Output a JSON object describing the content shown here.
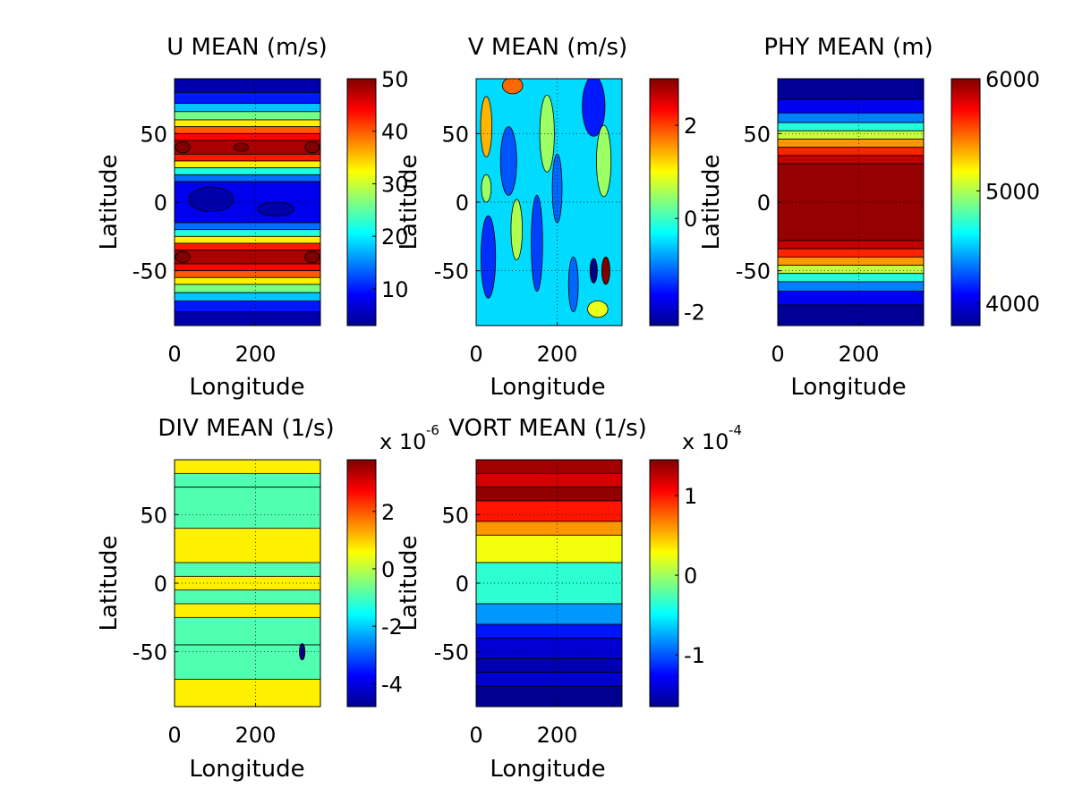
{
  "chart_data": [
    {
      "type": "heatmap",
      "title": "U MEAN (m/s)",
      "xlabel": "Longitude",
      "ylabel": "Latitude",
      "xlim": [
        0,
        360
      ],
      "ylim": [
        -90,
        90
      ],
      "xticks": [
        0,
        200
      ],
      "yticks": [
        50,
        0,
        -50
      ],
      "colorbar": {
        "range": [
          3,
          50
        ],
        "ticks": [
          50,
          40,
          30,
          20,
          10
        ],
        "multiplier": ""
      },
      "grid": true,
      "colormap": "jet",
      "field": "zonal wind",
      "bands": [
        {
          "lat": [
            80,
            90
          ],
          "value": 5
        },
        {
          "lat": [
            72,
            80
          ],
          "value": 10
        },
        {
          "lat": [
            66,
            72
          ],
          "value": 18
        },
        {
          "lat": [
            60,
            66
          ],
          "value": 26
        },
        {
          "lat": [
            55,
            60
          ],
          "value": 33
        },
        {
          "lat": [
            50,
            55
          ],
          "value": 40
        },
        {
          "lat": [
            45,
            50
          ],
          "value": 44
        },
        {
          "lat": [
            35,
            45
          ],
          "value": 48
        },
        {
          "lat": [
            30,
            35
          ],
          "value": 43
        },
        {
          "lat": [
            25,
            30
          ],
          "value": 33
        },
        {
          "lat": [
            20,
            25
          ],
          "value": 22
        },
        {
          "lat": [
            15,
            20
          ],
          "value": 14
        },
        {
          "lat": [
            -15,
            15
          ],
          "value": 8
        },
        {
          "lat": [
            -20,
            -15
          ],
          "value": 14
        },
        {
          "lat": [
            -25,
            -20
          ],
          "value": 22
        },
        {
          "lat": [
            -30,
            -25
          ],
          "value": 33
        },
        {
          "lat": [
            -35,
            -30
          ],
          "value": 43
        },
        {
          "lat": [
            -45,
            -35
          ],
          "value": 48
        },
        {
          "lat": [
            -50,
            -45
          ],
          "value": 44
        },
        {
          "lat": [
            -55,
            -50
          ],
          "value": 40
        },
        {
          "lat": [
            -60,
            -55
          ],
          "value": 33
        },
        {
          "lat": [
            -66,
            -60
          ],
          "value": 26
        },
        {
          "lat": [
            -72,
            -66
          ],
          "value": 18
        },
        {
          "lat": [
            -80,
            -72
          ],
          "value": 10
        },
        {
          "lat": [
            -90,
            -80
          ],
          "value": 5
        }
      ],
      "blobs": [
        {
          "lon": 20,
          "lat": 40,
          "rlon": 18,
          "rlat": 4,
          "value": 51
        },
        {
          "lon": 165,
          "lat": 40,
          "rlon": 18,
          "rlat": 3,
          "value": 51
        },
        {
          "lon": 340,
          "lat": 40,
          "rlon": 18,
          "rlat": 4,
          "value": 51
        },
        {
          "lon": 20,
          "lat": -40,
          "rlon": 18,
          "rlat": 4,
          "value": 51
        },
        {
          "lon": 340,
          "lat": -40,
          "rlon": 18,
          "rlat": 4,
          "value": 51
        },
        {
          "lon": 90,
          "lat": 2,
          "rlon": 55,
          "rlat": 9,
          "value": 5
        },
        {
          "lon": 250,
          "lat": -5,
          "rlon": 45,
          "rlat": 5,
          "value": 5
        }
      ]
    },
    {
      "type": "heatmap",
      "title": "V MEAN (m/s)",
      "xlabel": "Longitude",
      "ylabel": "Latitude",
      "xlim": [
        0,
        360
      ],
      "ylim": [
        -90,
        90
      ],
      "xticks": [
        0,
        200
      ],
      "yticks": [
        50,
        0,
        -50
      ],
      "colorbar": {
        "range": [
          -2.3,
          3
        ],
        "ticks": [
          2,
          0,
          -2
        ],
        "multiplier": ""
      },
      "grid": true,
      "colormap": "jet",
      "field": "meridional wind",
      "background": -0.5,
      "blobs": [
        {
          "lon": 25,
          "lat": 55,
          "rlon": 14,
          "rlat": 22,
          "value": 1.4
        },
        {
          "lon": 25,
          "lat": 10,
          "rlon": 12,
          "rlat": 10,
          "value": 0.5
        },
        {
          "lon": 30,
          "lat": -40,
          "rlon": 18,
          "rlat": 30,
          "value": -1.4
        },
        {
          "lon": 80,
          "lat": 30,
          "rlon": 20,
          "rlat": 25,
          "value": -1.2
        },
        {
          "lon": 100,
          "lat": -20,
          "rlon": 14,
          "rlat": 22,
          "value": 0.6
        },
        {
          "lon": 90,
          "lat": 85,
          "rlon": 25,
          "rlat": 6,
          "value": 1.8
        },
        {
          "lon": 175,
          "lat": 50,
          "rlon": 18,
          "rlat": 28,
          "value": 0.5
        },
        {
          "lon": 150,
          "lat": -30,
          "rlon": 14,
          "rlat": 35,
          "value": -1.3
        },
        {
          "lon": 200,
          "lat": 10,
          "rlon": 12,
          "rlat": 25,
          "value": -1.1
        },
        {
          "lon": 240,
          "lat": -60,
          "rlon": 12,
          "rlat": 20,
          "value": -1.1
        },
        {
          "lon": 290,
          "lat": 70,
          "rlon": 28,
          "rlat": 22,
          "value": -1.5
        },
        {
          "lon": 315,
          "lat": 30,
          "rlon": 18,
          "rlat": 26,
          "value": 0.5
        },
        {
          "lon": 290,
          "lat": -50,
          "rlon": 9,
          "rlat": 9,
          "value": -2.3
        },
        {
          "lon": 320,
          "lat": -50,
          "rlon": 10,
          "rlat": 10,
          "value": 3
        },
        {
          "lon": 300,
          "lat": -78,
          "rlon": 25,
          "rlat": 6,
          "value": 0.9
        }
      ]
    },
    {
      "type": "heatmap",
      "title": "PHY MEAN (m)",
      "xlabel": "Longitude",
      "ylabel": "Latitude",
      "xlim": [
        0,
        360
      ],
      "ylim": [
        -90,
        90
      ],
      "xticks": [
        0,
        200
      ],
      "yticks": [
        50,
        0,
        -50
      ],
      "colorbar": {
        "range": [
          3800,
          6000
        ],
        "ticks": [
          6000,
          5000,
          4000
        ],
        "multiplier": ""
      },
      "grid": true,
      "colormap": "jet",
      "field": "geopotential height",
      "bands": [
        {
          "lat": [
            75,
            90
          ],
          "value": 3850
        },
        {
          "lat": [
            65,
            75
          ],
          "value": 4050
        },
        {
          "lat": [
            58,
            65
          ],
          "value": 4350
        },
        {
          "lat": [
            52,
            58
          ],
          "value": 4700
        },
        {
          "lat": [
            46,
            52
          ],
          "value": 5050
        },
        {
          "lat": [
            40,
            46
          ],
          "value": 5400
        },
        {
          "lat": [
            34,
            40
          ],
          "value": 5650
        },
        {
          "lat": [
            28,
            34
          ],
          "value": 5850
        },
        {
          "lat": [
            -28,
            28
          ],
          "value": 5950
        },
        {
          "lat": [
            -34,
            -28
          ],
          "value": 5850
        },
        {
          "lat": [
            -40,
            -34
          ],
          "value": 5650
        },
        {
          "lat": [
            -46,
            -40
          ],
          "value": 5400
        },
        {
          "lat": [
            -52,
            -46
          ],
          "value": 5050
        },
        {
          "lat": [
            -58,
            -52
          ],
          "value": 4700
        },
        {
          "lat": [
            -65,
            -58
          ],
          "value": 4350
        },
        {
          "lat": [
            -75,
            -65
          ],
          "value": 4050
        },
        {
          "lat": [
            -90,
            -75
          ],
          "value": 3850
        }
      ]
    },
    {
      "type": "heatmap",
      "title": "DIV MEAN (1/s)",
      "xlabel": "Longitude",
      "ylabel": "Latitude",
      "xlim": [
        0,
        360
      ],
      "ylim": [
        -90,
        90
      ],
      "xticks": [
        0,
        200
      ],
      "yticks": [
        50,
        0,
        -50
      ],
      "colorbar": {
        "range": [
          -4.8,
          3.8
        ],
        "ticks": [
          2,
          0,
          -2,
          -4
        ],
        "multiplier": "x 10",
        "exponent": "-6"
      },
      "grid": true,
      "colormap": "jet",
      "field": "divergence",
      "background": 0.7,
      "bands": [
        {
          "lat": [
            70,
            80
          ],
          "value": -0.9
        },
        {
          "lat": [
            40,
            70
          ],
          "value": -0.9
        },
        {
          "lat": [
            5,
            15
          ],
          "value": -0.9
        },
        {
          "lat": [
            -15,
            -5
          ],
          "value": -0.9
        },
        {
          "lat": [
            -45,
            -25
          ],
          "value": -0.9
        },
        {
          "lat": [
            -70,
            -45
          ],
          "value": -0.9
        }
      ],
      "blobs": [
        {
          "lon": 315,
          "lat": -50,
          "rlon": 7,
          "rlat": 6,
          "value": -4.8
        }
      ]
    },
    {
      "type": "heatmap",
      "title": "VORT MEAN (1/s)",
      "xlabel": "Longitude",
      "ylabel": "Latitude",
      "xlim": [
        0,
        360
      ],
      "ylim": [
        -90,
        90
      ],
      "xticks": [
        0,
        200
      ],
      "yticks": [
        -50,
        0,
        50
      ],
      "colorbar": {
        "range": [
          -1.65,
          1.45
        ],
        "ticks": [
          1,
          0,
          -1
        ],
        "multiplier": "x 10",
        "exponent": "-4"
      },
      "grid": true,
      "colormap": "jet",
      "field": "vorticity",
      "bands": [
        {
          "lat": [
            80,
            90
          ],
          "value": 1.35
        },
        {
          "lat": [
            70,
            80
          ],
          "value": 1.2
        },
        {
          "lat": [
            60,
            70
          ],
          "value": 1.4
        },
        {
          "lat": [
            45,
            60
          ],
          "value": 1.0
        },
        {
          "lat": [
            35,
            45
          ],
          "value": 0.6
        },
        {
          "lat": [
            15,
            35
          ],
          "value": 0.25
        },
        {
          "lat": [
            -15,
            15
          ],
          "value": -0.35
        },
        {
          "lat": [
            -30,
            -15
          ],
          "value": -0.8
        },
        {
          "lat": [
            -40,
            -30
          ],
          "value": -1.2
        },
        {
          "lat": [
            -55,
            -40
          ],
          "value": -1.4
        },
        {
          "lat": [
            -65,
            -55
          ],
          "value": -1.5
        },
        {
          "lat": [
            -75,
            -65
          ],
          "value": -1.4
        },
        {
          "lat": [
            -90,
            -75
          ],
          "value": -1.6
        }
      ]
    }
  ]
}
